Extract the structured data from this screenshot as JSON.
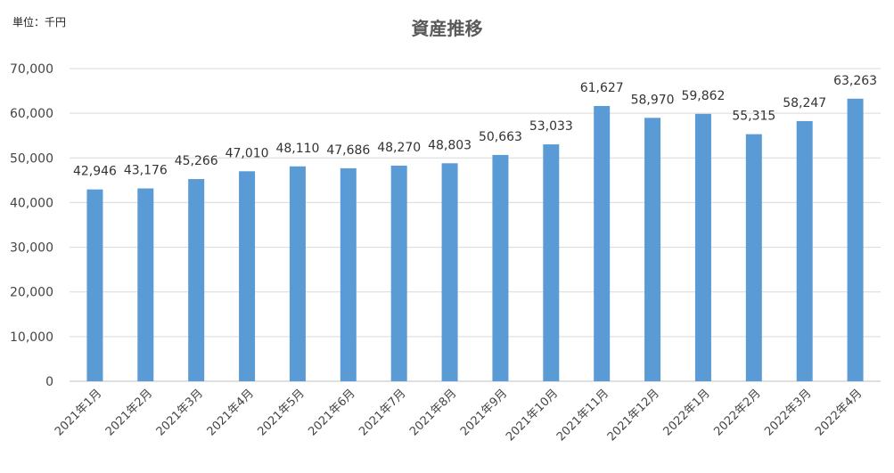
{
  "unit_label": "単位：千円",
  "chart_data": {
    "type": "bar",
    "title": "資産推移",
    "categories": [
      "2021年1月",
      "2021年2月",
      "2021年3月",
      "2021年4月",
      "2021年5月",
      "2021年6月",
      "2021年7月",
      "2021年8月",
      "2021年9月",
      "2021年10月",
      "2021年11月",
      "2021年12月",
      "2022年1月",
      "2022年2月",
      "2022年3月",
      "2022年4月"
    ],
    "values": [
      42946,
      43176,
      45266,
      47010,
      48110,
      47686,
      48270,
      48803,
      50663,
      53033,
      61627,
      58970,
      59862,
      55315,
      58247,
      63263
    ],
    "data_labels": [
      "42,946",
      "43,176",
      "45,266",
      "47,010",
      "48,110",
      "47,686",
      "48,270",
      "48,803",
      "50,663",
      "53,033",
      "61,627",
      "58,970",
      "59,862",
      "55,315",
      "58,247",
      "63,263"
    ],
    "ylim": [
      0,
      70000
    ],
    "yticks": [
      "0",
      "10,000",
      "20,000",
      "30,000",
      "40,000",
      "50,000",
      "60,000",
      "70,000"
    ],
    "xlabel": "",
    "ylabel": "",
    "grid": true,
    "bar_color": "#5b9bd5"
  }
}
